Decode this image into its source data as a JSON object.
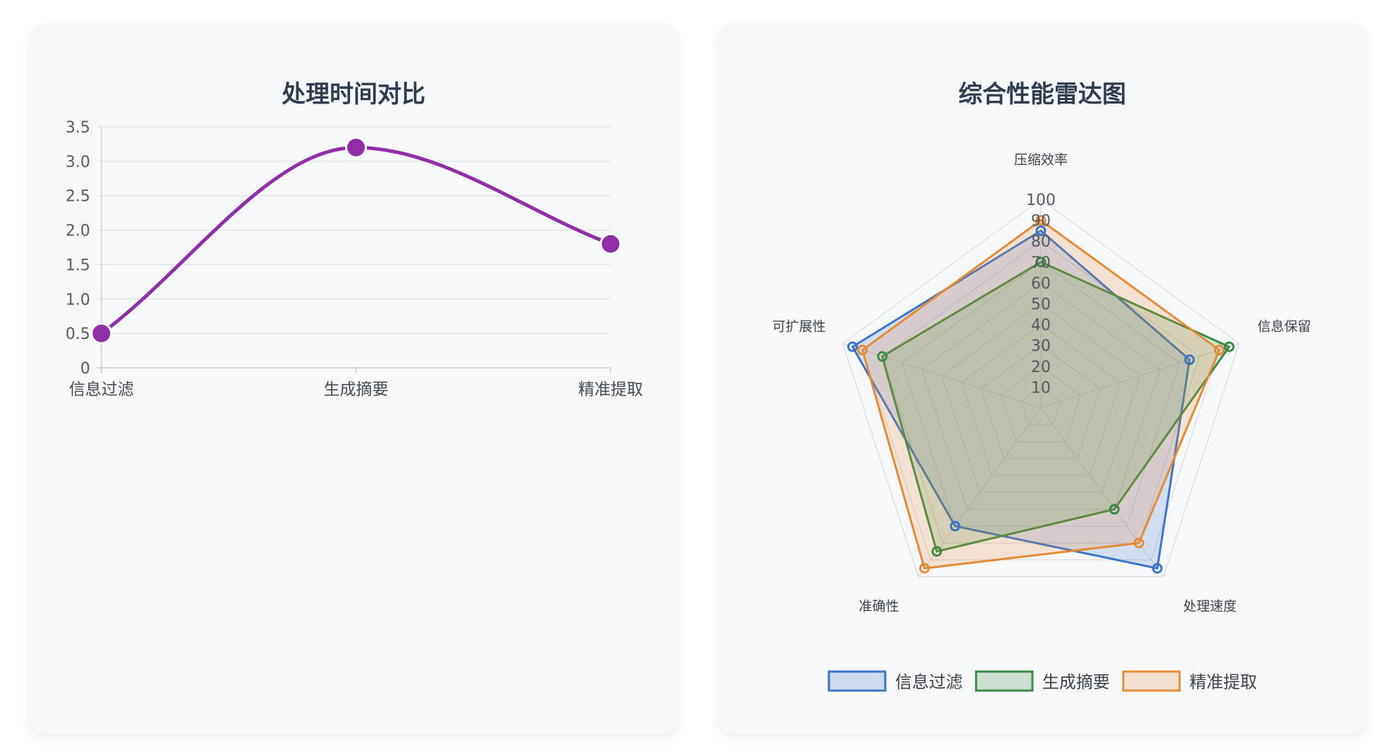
{
  "panels": {
    "left_title": "处理时间对比",
    "right_title": "综合性能雷达图"
  },
  "chart_data": [
    {
      "type": "line",
      "title": "处理时间对比",
      "categories": [
        "信息过滤",
        "生成摘要",
        "精准提取"
      ],
      "values": [
        0.5,
        3.2,
        1.8
      ],
      "ylim": [
        0,
        3.5
      ],
      "yticks": [
        "0",
        "0.5",
        "1.0",
        "1.5",
        "2.0",
        "2.5",
        "3.0",
        "3.5"
      ],
      "grid": true,
      "smooth": true,
      "color": "#8e2fa8",
      "legend": "none"
    },
    {
      "type": "radar",
      "title": "综合性能雷达图",
      "axes": [
        "压缩效率",
        "信息保留",
        "处理速度",
        "准确性",
        "可扩展性"
      ],
      "rlim": [
        0,
        100
      ],
      "rticks": [
        "10",
        "20",
        "30",
        "40",
        "50",
        "60",
        "70",
        "80",
        "90",
        "100"
      ],
      "legend": "bottom",
      "series": [
        {
          "name": "信息过滤",
          "values": [
            85,
            75,
            95,
            70,
            95
          ],
          "color": "#3b74c8"
        },
        {
          "name": "生成摘要",
          "values": [
            70,
            95,
            60,
            85,
            80
          ],
          "color": "#3c8a45"
        },
        {
          "name": "精准提取",
          "values": [
            90,
            90,
            80,
            95,
            90
          ],
          "color": "#e58a35"
        }
      ]
    }
  ]
}
